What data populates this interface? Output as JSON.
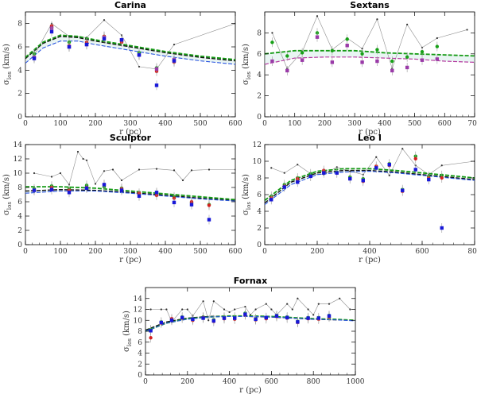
{
  "figure": {
    "xlabel": "r (pc)",
    "ylabel_main": "σ",
    "ylabel_sub": "los",
    "ylabel_unit": " (km/s)"
  },
  "chart_data": [
    {
      "type": "scatter",
      "title": "Carina",
      "xlabel": "r (pc)",
      "ylabel": "σ_los (km/s)",
      "xlim": [
        0,
        600
      ],
      "ylim": [
        0,
        9
      ],
      "xticks": [
        0,
        100,
        200,
        300,
        400,
        500,
        600
      ],
      "yticks": [
        0,
        2,
        4,
        6,
        8
      ],
      "series": [
        {
          "name": "gray (thin line)",
          "x": [
            25,
            75,
            125,
            175,
            225,
            275,
            325,
            375,
            425,
            600
          ],
          "y": [
            5.3,
            8.0,
            6.9,
            6.8,
            8.3,
            7.0,
            4.3,
            4.1,
            6.2,
            8.0
          ]
        },
        {
          "name": "green",
          "x": [
            25,
            75,
            125,
            175,
            225,
            275,
            325,
            375,
            425
          ],
          "y": [
            5.4,
            7.7,
            6.4,
            6.3,
            6.9,
            6.5,
            5.5,
            4.2,
            4.8
          ]
        },
        {
          "name": "red",
          "x": [
            25,
            75,
            125,
            175,
            225,
            275,
            325,
            375,
            425
          ],
          "y": [
            5.1,
            7.8,
            6.1,
            6.4,
            6.9,
            6.4,
            5.3,
            3.9,
            4.7
          ]
        },
        {
          "name": "purple",
          "x": [
            25,
            75,
            125,
            175,
            225,
            275,
            325,
            375,
            425
          ],
          "y": [
            5.1,
            7.6,
            6.0,
            6.2,
            6.8,
            6.6,
            5.3,
            4.1,
            4.9
          ]
        },
        {
          "name": "blue",
          "x": [
            25,
            75,
            125,
            175,
            225,
            275,
            325,
            375,
            425
          ],
          "y": [
            5.0,
            7.3,
            6.0,
            6.2,
            6.7,
            6.6,
            5.3,
            2.7,
            4.8
          ]
        }
      ],
      "curves": [
        {
          "name": "black dashed",
          "x": [
            0,
            50,
            100,
            150,
            200,
            300,
            400,
            500,
            600
          ],
          "y": [
            5.0,
            6.3,
            6.9,
            6.8,
            6.5,
            6.0,
            5.5,
            5.1,
            4.8
          ]
        },
        {
          "name": "green dashed",
          "x": [
            0,
            50,
            100,
            150,
            200,
            300,
            400,
            500,
            600
          ],
          "y": [
            5.1,
            6.4,
            7.0,
            6.9,
            6.6,
            6.1,
            5.6,
            5.2,
            4.9
          ]
        },
        {
          "name": "blue dashed",
          "x": [
            0,
            50,
            100,
            150,
            200,
            300,
            400,
            500,
            600
          ],
          "y": [
            4.6,
            5.9,
            6.5,
            6.5,
            6.2,
            5.7,
            5.2,
            4.8,
            4.5
          ]
        }
      ]
    },
    {
      "type": "scatter",
      "title": "Sextans",
      "xlabel": "r (pc)",
      "ylabel": "σ_los (km/s)",
      "xlim": [
        0,
        700
      ],
      "ylim": [
        0,
        10
      ],
      "xticks": [
        0,
        100,
        200,
        300,
        400,
        500,
        600,
        700
      ],
      "yticks": [
        0,
        2,
        4,
        6,
        8
      ],
      "series": [
        {
          "name": "gray (thin line)",
          "x": [
            25,
            75,
            125,
            175,
            225,
            275,
            325,
            375,
            425,
            475,
            525,
            575,
            675
          ],
          "y": [
            8.0,
            4.6,
            6.2,
            9.6,
            6.4,
            7.5,
            6.5,
            9.3,
            4.6,
            8.8,
            6.6,
            7.5,
            8.3
          ]
        },
        {
          "name": "green",
          "x": [
            25,
            75,
            125,
            175,
            225,
            275,
            325,
            375,
            425,
            475,
            525,
            575
          ],
          "y": [
            7.1,
            5.8,
            6.1,
            8.0,
            6.3,
            7.4,
            6.0,
            6.4,
            5.3,
            5.7,
            6.2,
            6.7
          ]
        },
        {
          "name": "purple",
          "x": [
            25,
            75,
            125,
            175,
            225,
            275,
            325,
            375,
            425,
            475,
            525,
            575
          ],
          "y": [
            5.3,
            4.4,
            5.4,
            7.6,
            5.2,
            6.8,
            5.2,
            5.3,
            4.4,
            4.7,
            5.4,
            5.5
          ]
        }
      ],
      "curves": [
        {
          "name": "green dashed",
          "x": [
            0,
            100,
            200,
            300,
            400,
            500,
            600,
            700
          ],
          "y": [
            6.0,
            6.3,
            6.3,
            6.3,
            6.1,
            6.0,
            5.9,
            5.8
          ]
        },
        {
          "name": "purple dashed",
          "x": [
            0,
            100,
            200,
            300,
            400,
            500,
            600,
            700
          ],
          "y": [
            5.0,
            5.6,
            5.7,
            5.7,
            5.6,
            5.5,
            5.3,
            5.2
          ]
        }
      ]
    },
    {
      "type": "scatter",
      "title": "Sculptor",
      "xlabel": "r (pc)",
      "ylabel": "σ_los (km/s)",
      "xlim": [
        0,
        600
      ],
      "ylim": [
        0,
        14
      ],
      "xticks": [
        0,
        100,
        200,
        300,
        400,
        500,
        600
      ],
      "yticks": [
        0,
        2,
        4,
        6,
        8,
        10,
        12,
        14
      ],
      "series": [
        {
          "name": "gray (thin line)",
          "x": [
            25,
            75,
            100,
            125,
            150,
            165,
            175,
            200,
            225,
            250,
            275,
            325,
            375,
            425,
            450,
            475,
            525,
            600
          ],
          "y": [
            10.0,
            9.5,
            10.0,
            8.4,
            13.0,
            12.0,
            11.8,
            8.5,
            10.3,
            10.5,
            9.0,
            10.5,
            10.6,
            10.4,
            9.0,
            10.4,
            10.5,
            10.5
          ]
        },
        {
          "name": "green",
          "x": [
            25,
            75,
            125,
            175,
            225,
            275,
            325,
            375,
            425,
            475,
            525
          ],
          "y": [
            7.8,
            8.2,
            7.8,
            8.3,
            8.1,
            7.9,
            7.0,
            7.2,
            6.7,
            5.9,
            5.6
          ]
        },
        {
          "name": "red",
          "x": [
            25,
            75,
            125,
            175,
            225,
            275,
            325,
            375,
            425,
            475,
            525
          ],
          "y": [
            7.6,
            8.0,
            7.6,
            8.0,
            8.4,
            7.8,
            7.2,
            6.9,
            6.5,
            6.0,
            5.5
          ]
        },
        {
          "name": "blue",
          "x": [
            25,
            75,
            125,
            175,
            225,
            275,
            325,
            375,
            425,
            475,
            525
          ],
          "y": [
            7.6,
            7.7,
            7.3,
            7.9,
            8.4,
            7.6,
            6.8,
            7.3,
            5.9,
            5.6,
            3.5
          ]
        }
      ],
      "curves": [
        {
          "name": "black dashed",
          "x": [
            0,
            100,
            200,
            300,
            400,
            500,
            600
          ],
          "y": [
            7.5,
            7.7,
            7.6,
            7.3,
            6.9,
            6.5,
            6.2
          ]
        },
        {
          "name": "green dashed",
          "x": [
            0,
            100,
            200,
            300,
            400,
            500,
            600
          ],
          "y": [
            8.1,
            8.1,
            7.9,
            7.5,
            7.1,
            6.7,
            6.3
          ]
        },
        {
          "name": "blue dashed",
          "x": [
            0,
            100,
            200,
            300,
            400,
            500,
            600
          ],
          "y": [
            7.2,
            7.5,
            7.5,
            7.2,
            6.8,
            6.4,
            6.1
          ]
        }
      ]
    },
    {
      "type": "scatter",
      "title": "Leo I",
      "xlabel": "r (pc)",
      "ylabel": "σ_los (km/s)",
      "xlim": [
        0,
        800
      ],
      "ylim": [
        0,
        12
      ],
      "xticks": [
        0,
        200,
        400,
        600,
        800
      ],
      "yticks": [
        0,
        2,
        4,
        6,
        8,
        10,
        12
      ],
      "series": [
        {
          "name": "gray (thin line)",
          "x": [
            25,
            75,
            125,
            175,
            225,
            275,
            325,
            375,
            425,
            475,
            525,
            575,
            625,
            675,
            800
          ],
          "y": [
            9.2,
            8.6,
            9.6,
            8.5,
            8.4,
            9.3,
            8.8,
            8.4,
            10.5,
            8.3,
            11.5,
            9.5,
            8.4,
            9.5,
            10.0
          ]
        },
        {
          "name": "green",
          "x": [
            25,
            75,
            125,
            175,
            225,
            275,
            325,
            375,
            425,
            475,
            525,
            575,
            625,
            675
          ],
          "y": [
            5.8,
            7.2,
            8.0,
            8.5,
            8.8,
            8.7,
            8.1,
            7.9,
            9.3,
            9.7,
            6.6,
            10.6,
            8.2,
            8.3
          ]
        },
        {
          "name": "red",
          "x": [
            25,
            75,
            125,
            175,
            225,
            275,
            325,
            375,
            425,
            475,
            525,
            575,
            625,
            675
          ],
          "y": [
            5.6,
            7.0,
            7.9,
            8.2,
            8.9,
            8.6,
            7.9,
            7.6,
            9.4,
            9.5,
            6.4,
            10.3,
            8.0,
            8.0
          ]
        },
        {
          "name": "blue",
          "x": [
            25,
            75,
            125,
            175,
            225,
            275,
            325,
            375,
            425,
            475,
            525,
            575,
            625,
            675
          ],
          "y": [
            5.4,
            6.9,
            7.5,
            8.2,
            8.6,
            8.6,
            7.9,
            7.7,
            9.2,
            9.6,
            6.5,
            9.0,
            7.8,
            2.0
          ]
        }
      ],
      "curves": [
        {
          "name": "black dashed",
          "x": [
            0,
            100,
            200,
            300,
            400,
            500,
            600,
            700,
            800
          ],
          "y": [
            5.0,
            7.5,
            8.6,
            8.9,
            8.9,
            8.7,
            8.4,
            8.1,
            7.8
          ]
        },
        {
          "name": "green dashed",
          "x": [
            0,
            100,
            200,
            300,
            400,
            500,
            600,
            700,
            800
          ],
          "y": [
            5.3,
            7.7,
            8.8,
            9.1,
            9.1,
            8.9,
            8.6,
            8.3,
            8.0
          ]
        },
        {
          "name": "blue dashed",
          "x": [
            0,
            100,
            200,
            300,
            400,
            500,
            600,
            700,
            800
          ],
          "y": [
            4.8,
            7.2,
            8.4,
            8.7,
            8.8,
            8.6,
            8.3,
            8.0,
            7.7
          ]
        }
      ]
    },
    {
      "type": "scatter",
      "title": "Fornax",
      "xlabel": "r (pc)",
      "ylabel": "σ_los (km/s)",
      "xlim": [
        0,
        1000
      ],
      "ylim": [
        0,
        16
      ],
      "xticks": [
        0,
        200,
        400,
        600,
        800,
        1000
      ],
      "yticks": [
        0,
        2,
        4,
        6,
        8,
        10,
        12,
        14
      ],
      "series": [
        {
          "name": "gray (thin line)",
          "x": [
            25,
            75,
            100,
            125,
            175,
            200,
            225,
            275,
            300,
            325,
            375,
            400,
            425,
            475,
            500,
            525,
            575,
            600,
            625,
            675,
            700,
            725,
            775,
            800,
            825,
            875,
            925,
            975
          ],
          "y": [
            12.0,
            12.0,
            12.0,
            9.7,
            12.0,
            12.0,
            10.8,
            13.5,
            10.0,
            13.5,
            12.0,
            11.5,
            12.0,
            12.5,
            11.0,
            12.0,
            13.0,
            12.0,
            11.0,
            13.0,
            12.0,
            14.0,
            12.0,
            11.0,
            13.0,
            13.0,
            14.0,
            12.0
          ]
        },
        {
          "name": "green",
          "x": [
            25,
            75,
            125,
            175,
            225,
            275,
            325,
            375,
            425,
            475,
            525,
            575,
            625,
            675,
            725,
            775,
            825,
            875
          ],
          "y": [
            8.3,
            9.7,
            10.1,
            10.6,
            10.3,
            10.6,
            10.1,
            10.6,
            10.6,
            11.3,
            10.3,
            10.5,
            10.9,
            10.6,
            9.8,
            10.5,
            10.5,
            10.9
          ]
        },
        {
          "name": "red",
          "x": [
            25,
            75,
            125,
            175,
            225,
            275,
            325,
            375,
            425,
            475,
            525,
            575,
            625,
            675,
            725,
            775,
            825,
            875
          ],
          "y": [
            6.8,
            9.5,
            10.3,
            10.4,
            10.0,
            10.5,
            9.8,
            10.3,
            10.2,
            11.0,
            10.1,
            10.3,
            10.7,
            10.4,
            9.6,
            10.3,
            10.2,
            10.6
          ]
        },
        {
          "name": "blue",
          "x": [
            25,
            75,
            125,
            175,
            225,
            275,
            325,
            375,
            425,
            475,
            525,
            575,
            625,
            675,
            725,
            775,
            825,
            875
          ],
          "y": [
            8.1,
            9.6,
            10.0,
            10.5,
            10.2,
            10.4,
            9.9,
            10.4,
            10.4,
            11.1,
            10.2,
            10.5,
            10.8,
            10.5,
            9.7,
            10.4,
            10.4,
            10.8
          ]
        }
      ],
      "curves": [
        {
          "name": "black dashed",
          "x": [
            0,
            100,
            200,
            300,
            400,
            500,
            600,
            700,
            800,
            900,
            1000
          ],
          "y": [
            8.2,
            9.7,
            10.4,
            10.7,
            10.8,
            10.7,
            10.6,
            10.4,
            10.2,
            10.1,
            10.0
          ]
        },
        {
          "name": "green dashed",
          "x": [
            0,
            100,
            200,
            300,
            400,
            500,
            600,
            700,
            800,
            900,
            1000
          ],
          "y": [
            8.0,
            9.5,
            10.3,
            10.6,
            10.8,
            10.8,
            10.7,
            10.5,
            10.3,
            10.2,
            10.0
          ]
        },
        {
          "name": "blue dashed",
          "x": [
            0,
            100,
            200,
            300,
            400,
            500,
            600,
            700,
            800,
            900,
            1000
          ],
          "y": [
            8.0,
            9.5,
            10.2,
            10.6,
            10.7,
            10.7,
            10.6,
            10.4,
            10.2,
            10.1,
            9.9
          ]
        }
      ]
    }
  ]
}
